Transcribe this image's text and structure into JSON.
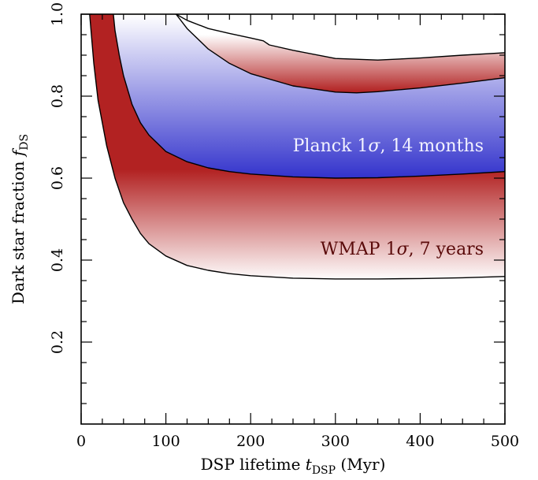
{
  "chart_data": {
    "type": "area",
    "x_axis": {
      "label_main": "DSP lifetime ",
      "label_symbol": "t",
      "label_subscript": "DSP",
      "label_unit": " (Myr)",
      "lim": [
        0,
        500
      ],
      "ticks": [
        0,
        100,
        200,
        300,
        400,
        500
      ],
      "tick_labels": [
        "0",
        "100",
        "200",
        "300",
        "400",
        "500"
      ]
    },
    "y_axis": {
      "label_main": "Dark star fraction ",
      "label_symbol": "f",
      "label_subscript": "DS",
      "lim": [
        0,
        1.0
      ],
      "ticks": [
        0.2,
        0.4,
        0.6,
        0.8,
        1.0
      ],
      "tick_labels": [
        "0.2",
        "0.4",
        "0.6",
        "0.8",
        "1.0"
      ]
    },
    "grid": false,
    "series": [
      {
        "name": "WMAP 1σ, 7 years",
        "color": "#b22222",
        "lower": {
          "x": [
            10,
            15,
            20,
            30,
            40,
            50,
            60,
            70,
            80,
            100,
            125,
            150,
            175,
            200,
            250,
            300,
            350,
            400,
            450,
            500
          ],
          "y": [
            1.0,
            0.88,
            0.79,
            0.68,
            0.6,
            0.54,
            0.5,
            0.465,
            0.44,
            0.41,
            0.387,
            0.375,
            0.367,
            0.362,
            0.356,
            0.354,
            0.354,
            0.355,
            0.357,
            0.36
          ]
        },
        "upper": {
          "x": [
            112,
            125,
            150,
            175,
            200,
            215,
            222,
            250,
            300,
            350,
            400,
            450,
            500
          ],
          "y": [
            1.0,
            0.985,
            0.965,
            0.953,
            0.942,
            0.935,
            0.925,
            0.912,
            0.892,
            0.888,
            0.893,
            0.9,
            0.906
          ]
        }
      },
      {
        "name": "Planck 1σ, 14 months",
        "color": "#3333cc",
        "lower": {
          "x": [
            38,
            40,
            45,
            50,
            60,
            70,
            80,
            100,
            125,
            150,
            175,
            200,
            250,
            300,
            350,
            400,
            450,
            500
          ],
          "y": [
            1.0,
            0.96,
            0.9,
            0.85,
            0.78,
            0.735,
            0.705,
            0.665,
            0.64,
            0.625,
            0.616,
            0.61,
            0.603,
            0.6,
            0.601,
            0.605,
            0.61,
            0.616
          ]
        },
        "upper": {
          "x": [
            112,
            125,
            150,
            175,
            200,
            250,
            300,
            325,
            350,
            400,
            450,
            500
          ],
          "y": [
            1.0,
            0.965,
            0.915,
            0.88,
            0.855,
            0.825,
            0.81,
            0.808,
            0.811,
            0.82,
            0.832,
            0.845
          ]
        }
      }
    ],
    "annotations": [
      {
        "name": "planck",
        "prefix": "Planck 1",
        "symbol": "σ",
        "suffix": ", 14 months",
        "color": "#f2f2ff"
      },
      {
        "name": "wmap",
        "prefix": "WMAP 1",
        "symbol": "σ",
        "suffix": ", 7 years",
        "color": "#5a0a0a"
      }
    ]
  }
}
